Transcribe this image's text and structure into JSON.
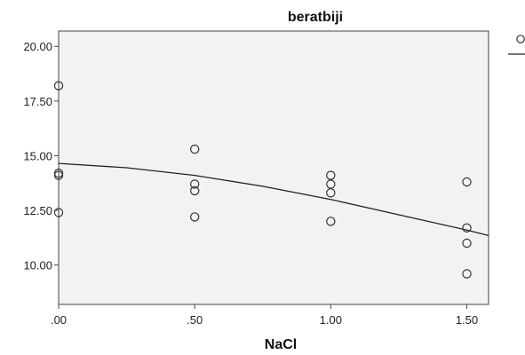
{
  "chart_data": {
    "type": "scatter",
    "title": "beratbiji",
    "xlabel": "NaCl",
    "ylabel": "",
    "xlim": [
      0.0,
      1.58
    ],
    "ylim": [
      8.2,
      20.7
    ],
    "x_ticks": [
      {
        "value": 0.0,
        "label": ".00"
      },
      {
        "value": 0.5,
        "label": ".50"
      },
      {
        "value": 1.0,
        "label": "1.00"
      },
      {
        "value": 1.5,
        "label": "1.50"
      }
    ],
    "y_ticks": [
      {
        "value": 10.0,
        "label": "10.00"
      },
      {
        "value": 12.5,
        "label": "12.50"
      },
      {
        "value": 15.0,
        "label": "15.00"
      },
      {
        "value": 17.5,
        "label": "17.50"
      },
      {
        "value": 20.0,
        "label": "20.00"
      }
    ],
    "points": [
      {
        "x": 0.0,
        "y": 18.2
      },
      {
        "x": 0.0,
        "y": 14.2
      },
      {
        "x": 0.0,
        "y": 14.1
      },
      {
        "x": 0.0,
        "y": 12.4
      },
      {
        "x": 0.5,
        "y": 15.3
      },
      {
        "x": 0.5,
        "y": 13.7
      },
      {
        "x": 0.5,
        "y": 13.4
      },
      {
        "x": 0.5,
        "y": 12.2
      },
      {
        "x": 1.0,
        "y": 14.1
      },
      {
        "x": 1.0,
        "y": 13.7
      },
      {
        "x": 1.0,
        "y": 13.3
      },
      {
        "x": 1.0,
        "y": 12.0
      },
      {
        "x": 1.5,
        "y": 13.8
      },
      {
        "x": 1.5,
        "y": 11.7
      },
      {
        "x": 1.5,
        "y": 11.0
      },
      {
        "x": 1.5,
        "y": 9.6
      }
    ],
    "fit_line": {
      "x": [
        0.0,
        0.25,
        0.5,
        0.75,
        1.0,
        1.25,
        1.5,
        1.58
      ],
      "y": [
        14.65,
        14.45,
        14.1,
        13.6,
        13.0,
        12.3,
        11.6,
        11.35
      ]
    },
    "grid": false,
    "legend_position": "top-right",
    "colors": {
      "plot_background": "#f2f2f2",
      "marker_stroke": "#333333",
      "line": "#222222",
      "axis": "#444444"
    }
  }
}
